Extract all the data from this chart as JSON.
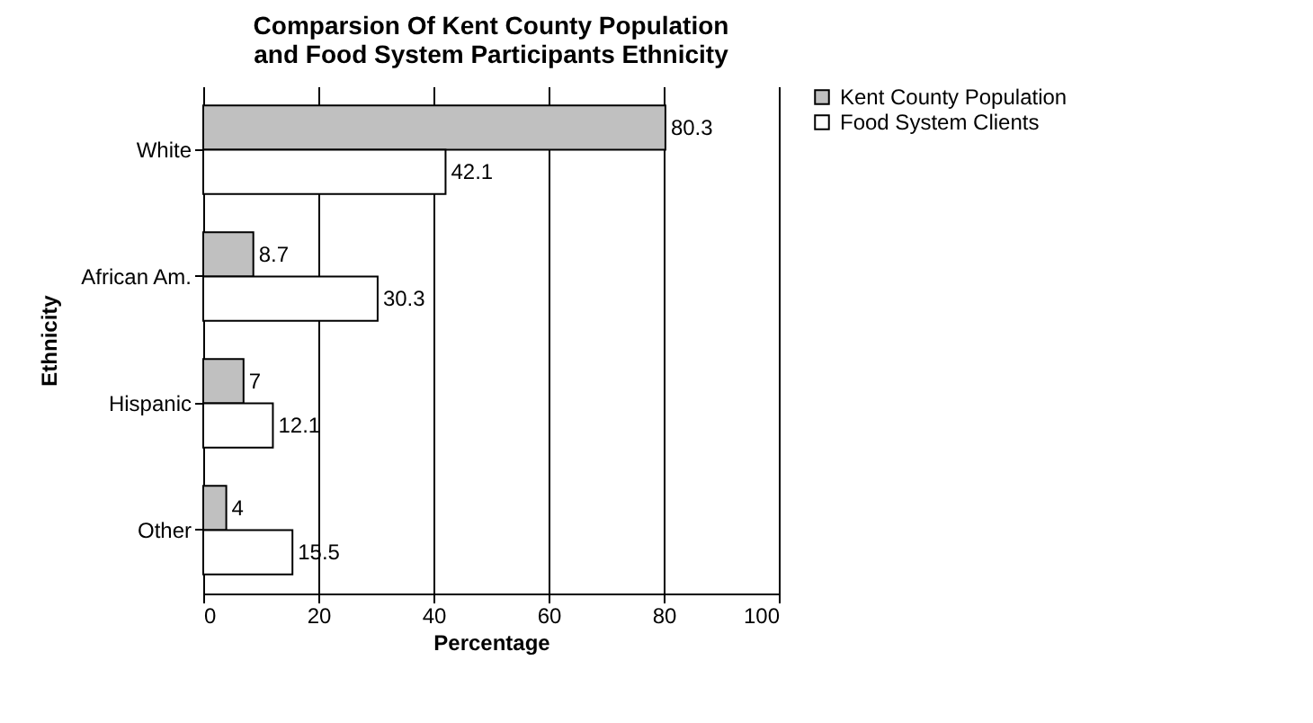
{
  "chart_data": {
    "type": "bar",
    "orientation": "horizontal",
    "title": "Comparsion Of Kent County Population\nand Food System Participants Ethnicity",
    "xlabel": "Percentage",
    "ylabel": "Ethnicity",
    "categories": [
      "White",
      "African Am.",
      "Hispanic",
      "Other"
    ],
    "series": [
      {
        "name": "Kent County Population",
        "color": "#c0c0c0",
        "values": [
          80.3,
          8.7,
          7,
          4
        ]
      },
      {
        "name": "Food System Clients",
        "color": "#ffffff",
        "values": [
          42.1,
          30.3,
          12.1,
          15.5
        ]
      }
    ],
    "xlim": [
      0,
      100
    ],
    "xticks": [
      0,
      20,
      40,
      60,
      80,
      100
    ],
    "grid": "x",
    "legend": "right",
    "data_labels": true
  }
}
